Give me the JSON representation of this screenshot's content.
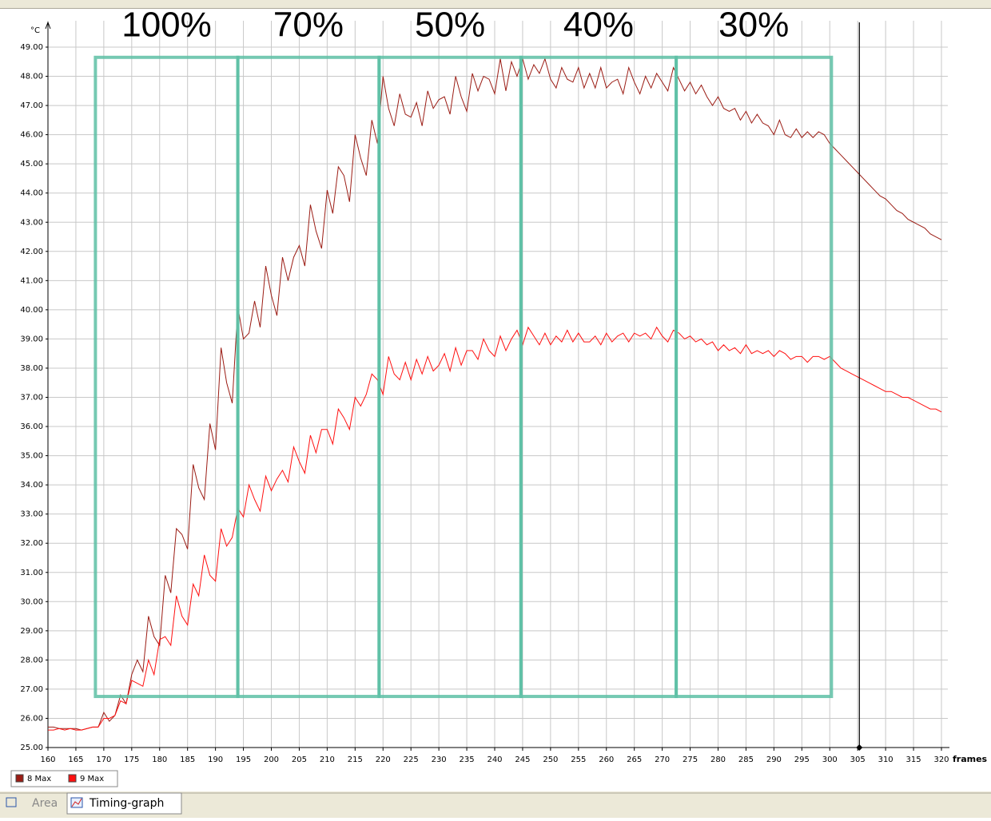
{
  "chart_data": {
    "type": "line",
    "y_unit": "°C",
    "x_label": "frames",
    "x": [
      160,
      161,
      162,
      163,
      164,
      165,
      166,
      167,
      168,
      169,
      170,
      171,
      172,
      173,
      174,
      175,
      176,
      177,
      178,
      179,
      180,
      181,
      182,
      183,
      184,
      185,
      186,
      187,
      188,
      189,
      190,
      191,
      192,
      193,
      194,
      195,
      196,
      197,
      198,
      199,
      200,
      201,
      202,
      203,
      204,
      205,
      206,
      207,
      208,
      209,
      210,
      211,
      212,
      213,
      214,
      215,
      216,
      217,
      218,
      219,
      220,
      221,
      222,
      223,
      224,
      225,
      226,
      227,
      228,
      229,
      230,
      231,
      232,
      233,
      234,
      235,
      236,
      237,
      238,
      239,
      240,
      241,
      242,
      243,
      244,
      245,
      246,
      247,
      248,
      249,
      250,
      251,
      252,
      253,
      254,
      255,
      256,
      257,
      258,
      259,
      260,
      261,
      262,
      263,
      264,
      265,
      266,
      267,
      268,
      269,
      270,
      271,
      272,
      273,
      274,
      275,
      276,
      277,
      278,
      279,
      280,
      281,
      282,
      283,
      284,
      285,
      286,
      287,
      288,
      289,
      290,
      291,
      292,
      293,
      294,
      295,
      296,
      297,
      298,
      299,
      300,
      301,
      302,
      303,
      304,
      305,
      306,
      307,
      308,
      309,
      310,
      311,
      312,
      313,
      314,
      315,
      316,
      317,
      318,
      319,
      320
    ],
    "series": [
      {
        "name": "8 Max",
        "color": "#9b1c14",
        "values": [
          25.7,
          25.7,
          25.65,
          25.65,
          25.65,
          25.65,
          25.6,
          25.65,
          25.7,
          25.7,
          26.2,
          25.9,
          26.1,
          26.8,
          26.5,
          27.5,
          28.0,
          27.6,
          29.5,
          28.8,
          28.5,
          30.9,
          30.3,
          32.5,
          32.3,
          31.8,
          34.7,
          33.9,
          33.5,
          36.1,
          35.2,
          38.7,
          37.5,
          36.8,
          40.1,
          39.0,
          39.2,
          40.3,
          39.4,
          41.5,
          40.5,
          39.8,
          41.8,
          41.0,
          41.8,
          42.2,
          41.5,
          43.6,
          42.7,
          42.1,
          44.1,
          43.3,
          44.9,
          44.6,
          43.7,
          46.0,
          45.2,
          44.6,
          46.5,
          45.7,
          48.0,
          46.9,
          46.3,
          47.4,
          46.7,
          46.6,
          47.1,
          46.3,
          47.5,
          46.9,
          47.2,
          47.3,
          46.7,
          48.0,
          47.3,
          46.8,
          48.1,
          47.5,
          48.0,
          47.9,
          47.4,
          48.6,
          47.5,
          48.5,
          48.0,
          48.6,
          47.9,
          48.4,
          48.1,
          48.6,
          47.9,
          47.6,
          48.3,
          47.9,
          47.8,
          48.3,
          47.6,
          48.1,
          47.6,
          48.3,
          47.6,
          47.8,
          47.9,
          47.4,
          48.3,
          47.8,
          47.4,
          48.0,
          47.6,
          48.1,
          47.8,
          47.5,
          48.3,
          47.9,
          47.5,
          47.8,
          47.4,
          47.7,
          47.3,
          47.0,
          47.3,
          46.9,
          46.8,
          46.9,
          46.5,
          46.8,
          46.4,
          46.7,
          46.4,
          46.3,
          46.0,
          46.5,
          46.0,
          45.9,
          46.2,
          45.9,
          46.1,
          45.9,
          46.1,
          46.0,
          45.7,
          45.5,
          45.3,
          45.1,
          44.9,
          44.7,
          44.5,
          44.3,
          44.1,
          43.9,
          43.8,
          43.6,
          43.4,
          43.3,
          43.1,
          43.0,
          42.9,
          42.8,
          42.6,
          42.5,
          42.4
        ]
      },
      {
        "name": "9 Max",
        "color": "#ff1010",
        "values": [
          25.6,
          25.6,
          25.65,
          25.6,
          25.65,
          25.6,
          25.6,
          25.65,
          25.7,
          25.7,
          26.0,
          26.0,
          26.1,
          26.6,
          26.5,
          27.3,
          27.2,
          27.1,
          28.0,
          27.5,
          28.7,
          28.8,
          28.5,
          30.2,
          29.5,
          29.2,
          30.6,
          30.2,
          31.6,
          30.9,
          30.7,
          32.5,
          31.9,
          32.2,
          33.2,
          32.9,
          34.0,
          33.5,
          33.1,
          34.3,
          33.8,
          34.2,
          34.5,
          34.1,
          35.3,
          34.8,
          34.4,
          35.7,
          35.1,
          35.9,
          35.9,
          35.4,
          36.6,
          36.3,
          35.9,
          37.0,
          36.7,
          37.1,
          37.8,
          37.6,
          37.1,
          38.4,
          37.8,
          37.6,
          38.2,
          37.6,
          38.3,
          37.8,
          38.4,
          37.9,
          38.1,
          38.5,
          37.9,
          38.7,
          38.1,
          38.6,
          38.6,
          38.3,
          39.0,
          38.6,
          38.4,
          39.1,
          38.6,
          39.0,
          39.3,
          38.8,
          39.4,
          39.1,
          38.8,
          39.2,
          38.8,
          39.1,
          38.9,
          39.3,
          38.9,
          39.2,
          38.9,
          38.9,
          39.1,
          38.8,
          39.2,
          38.9,
          39.1,
          39.2,
          38.9,
          39.2,
          39.1,
          39.2,
          39.0,
          39.4,
          39.1,
          38.9,
          39.3,
          39.2,
          39.0,
          39.1,
          38.9,
          39.0,
          38.8,
          38.9,
          38.6,
          38.8,
          38.6,
          38.7,
          38.5,
          38.8,
          38.5,
          38.6,
          38.5,
          38.6,
          38.4,
          38.6,
          38.5,
          38.3,
          38.4,
          38.4,
          38.2,
          38.4,
          38.4,
          38.3,
          38.4,
          38.2,
          38.0,
          37.9,
          37.8,
          37.7,
          37.6,
          37.5,
          37.4,
          37.3,
          37.2,
          37.2,
          37.1,
          37.0,
          37.0,
          36.9,
          36.8,
          36.7,
          36.6,
          36.6,
          36.5
        ]
      }
    ],
    "xlim": [
      160,
      320
    ],
    "ylim": [
      25,
      49
    ],
    "xticks": [
      160,
      165,
      170,
      175,
      180,
      185,
      190,
      195,
      200,
      205,
      210,
      215,
      220,
      225,
      230,
      235,
      240,
      245,
      250,
      255,
      260,
      265,
      270,
      275,
      280,
      285,
      290,
      295,
      300,
      305,
      310,
      315,
      320
    ],
    "yticks": [
      {
        "value": 25,
        "label": "25.00"
      },
      {
        "value": 26,
        "label": "26.00"
      },
      {
        "value": 27,
        "label": "27.00"
      },
      {
        "value": 28,
        "label": "28.00"
      },
      {
        "value": 29,
        "label": "29.00"
      },
      {
        "value": 30,
        "label": "30.00"
      },
      {
        "value": 31,
        "label": "31.00"
      },
      {
        "value": 32,
        "label": "32.00"
      },
      {
        "value": 33,
        "label": "33.00"
      },
      {
        "value": 34,
        "label": "34.00"
      },
      {
        "value": 35,
        "label": "35.00"
      },
      {
        "value": 36,
        "label": "36.00"
      },
      {
        "value": 37,
        "label": "37.00"
      },
      {
        "value": 38,
        "label": "38.00"
      },
      {
        "value": 39,
        "label": "39.00"
      },
      {
        "value": 40,
        "label": "40.00"
      },
      {
        "value": 41,
        "label": "41.00"
      },
      {
        "value": 42,
        "label": "42.00"
      },
      {
        "value": 43,
        "label": "43.00"
      },
      {
        "value": 44,
        "label": "44.00"
      },
      {
        "value": 45,
        "label": "45.00"
      },
      {
        "value": 46,
        "label": "46.00"
      },
      {
        "value": 47,
        "label": "47.00"
      },
      {
        "value": 48,
        "label": "48.00"
      },
      {
        "value": 49,
        "label": "49.00"
      }
    ],
    "grid": true,
    "cursor": 305.3,
    "region_range": [
      26.75,
      48.65
    ],
    "regions": [
      {
        "label": "100%",
        "start": 168.5,
        "end": 194
      },
      {
        "label": "70%",
        "start": 194,
        "end": 219.3
      },
      {
        "label": "50%",
        "start": 219.3,
        "end": 244.7
      },
      {
        "label": "40%",
        "start": 244.7,
        "end": 272.5
      },
      {
        "label": "30%",
        "start": 272.5,
        "end": 300.3
      }
    ],
    "region_color": "#5dbfa5"
  },
  "tabs": [
    "Area",
    "Timing-graph"
  ]
}
